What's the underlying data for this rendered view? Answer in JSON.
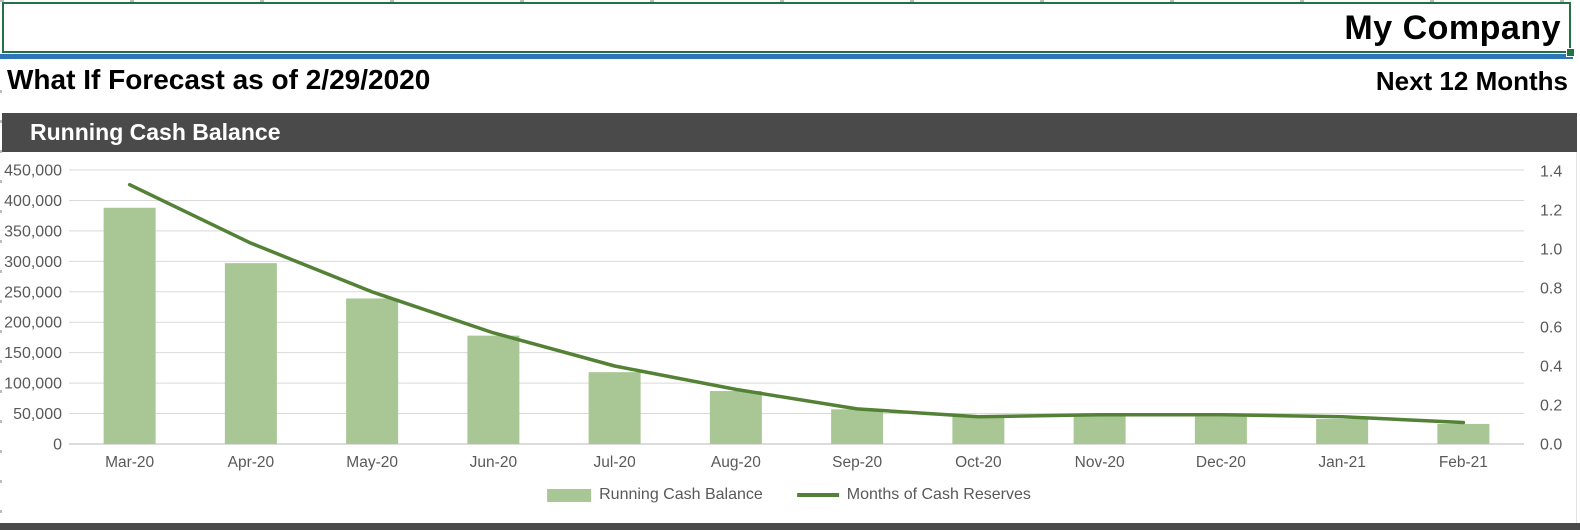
{
  "header": {
    "company_name": "My Company",
    "forecast_title": "What If Forecast as of 2/29/2020",
    "period_label": "Next 12 Months"
  },
  "section": {
    "title": "Running Cash Balance"
  },
  "colors": {
    "bar_fill": "#a9c794",
    "line_stroke": "#538135",
    "section_bar_bg": "#4a4a4a",
    "divider_blue": "#2e75b6",
    "selection_green": "#217346",
    "axis_text": "#595959",
    "gridline": "#d9d9d9",
    "axis_line": "#c6c6c6"
  },
  "chart_data": {
    "type": "combo (bar + line)",
    "categories": [
      "Mar-20",
      "Apr-20",
      "May-20",
      "Jun-20",
      "Jul-20",
      "Aug-20",
      "Sep-20",
      "Oct-20",
      "Nov-20",
      "Dec-20",
      "Jan-21",
      "Feb-21"
    ],
    "series": [
      {
        "name": "Running Cash Balance",
        "type": "bar",
        "axis": "left",
        "values": [
          388000,
          297000,
          239000,
          178000,
          118000,
          87000,
          57000,
          45000,
          47000,
          45000,
          41000,
          33000
        ]
      },
      {
        "name": "Months of Cash Reserves",
        "type": "line",
        "axis": "right",
        "values": [
          1.33,
          1.03,
          0.78,
          0.57,
          0.4,
          0.28,
          0.18,
          0.14,
          0.15,
          0.15,
          0.14,
          0.11
        ]
      }
    ],
    "left_axis": {
      "min": 0,
      "max": 450000,
      "step": 50000,
      "tick_labels": [
        "0",
        "50,000",
        "100,000",
        "150,000",
        "200,000",
        "250,000",
        "300,000",
        "350,000",
        "400,000",
        "450,000"
      ]
    },
    "right_axis": {
      "min": 0,
      "max": 1.4,
      "step": 0.2,
      "tick_labels": [
        "0.0",
        "0.2",
        "0.4",
        "0.6",
        "0.8",
        "1.0",
        "1.2",
        "1.4"
      ]
    },
    "legend": [
      "Running Cash Balance",
      "Months of Cash Reserves"
    ],
    "grid": true,
    "legend_position": "bottom"
  }
}
